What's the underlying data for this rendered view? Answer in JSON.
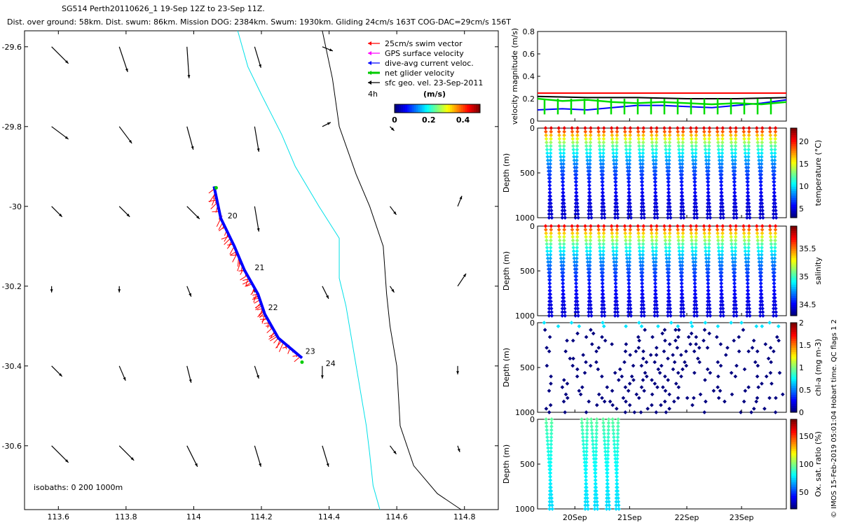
{
  "header": {
    "line1": "SG514 Perth20110626_1 19-Sep 12Z to 23-Sep 11Z.",
    "line2": "Dist. over ground: 58km. Dist. swum: 86km. Mission DOG: 2384km. Swum: 1930km. Gliding 24cm/s 163T COG-DAC=29cm/s 156T"
  },
  "credit": "© IMOS 15-Feb-2019 05:01:04 Hobart time. QC flags 1  2",
  "colors": {
    "swim": "#ff0000",
    "gps": "#ff00ff",
    "current": "#0000ff",
    "net": "#00cc00",
    "sfc": "#000000",
    "coast": "#00e0e8"
  },
  "chart_data": [
    {
      "type": "map",
      "xlim": [
        113.5,
        114.9
      ],
      "ylim": [
        -30.76,
        -29.56
      ],
      "xticks": [
        "113.6",
        "113.8",
        "114",
        "114.2",
        "114.4",
        "114.6",
        "114.8"
      ],
      "yticks": [
        "-29.6",
        "-29.8",
        "-30",
        "-30.2",
        "-30.4",
        "-30.6"
      ],
      "legend": {
        "position": "top-right",
        "items": [
          {
            "label": "25cm/s swim vector",
            "color": "#ff0000"
          },
          {
            "label": "GPS surface velocity",
            "color": "#ff00ff"
          },
          {
            "label": "dive-avg current veloc.",
            "color": "#0000ff"
          },
          {
            "label": "net glider velocity",
            "color": "#00cc00"
          },
          {
            "label": "sfc geo. vel. 23-Sep-2011",
            "color": "#000000"
          }
        ],
        "scale_label": "4h"
      },
      "colorbar": {
        "title": "(m/s)",
        "ticks": [
          "0",
          "0.2",
          "0.4"
        ],
        "range": [
          0,
          0.5
        ]
      },
      "isobaths_label": "isobaths: 0   200  1000m",
      "track": [
        [
          114.06,
          -29.95
        ],
        [
          114.08,
          -30.03
        ],
        [
          114.12,
          -30.1
        ],
        [
          114.15,
          -30.16
        ],
        [
          114.19,
          -30.22
        ],
        [
          114.21,
          -30.27
        ],
        [
          114.25,
          -30.33
        ],
        [
          114.32,
          -30.38
        ]
      ],
      "day_labels": [
        {
          "text": "20",
          "lon": 114.1,
          "lat": -30.03
        },
        {
          "text": "21",
          "lon": 114.18,
          "lat": -30.16
        },
        {
          "text": "22",
          "lon": 114.22,
          "lat": -30.26
        },
        {
          "text": "23",
          "lon": 114.33,
          "lat": -30.37
        },
        {
          "text": "24",
          "lon": 114.39,
          "lat": -30.4
        }
      ],
      "coastline_1000m": [
        [
          114.13,
          -29.56
        ],
        [
          114.16,
          -29.65
        ],
        [
          114.2,
          -29.72
        ],
        [
          114.26,
          -29.82
        ],
        [
          114.3,
          -29.9
        ],
        [
          114.37,
          -30.0
        ],
        [
          114.43,
          -30.08
        ],
        [
          114.43,
          -30.18
        ],
        [
          114.45,
          -30.25
        ],
        [
          114.47,
          -30.35
        ],
        [
          114.49,
          -30.45
        ],
        [
          114.51,
          -30.55
        ],
        [
          114.52,
          -30.62
        ],
        [
          114.53,
          -30.7
        ],
        [
          114.55,
          -30.76
        ]
      ],
      "coastline_0m": [
        [
          114.38,
          -29.56
        ],
        [
          114.41,
          -29.68
        ],
        [
          114.43,
          -29.8
        ],
        [
          114.48,
          -29.92
        ],
        [
          114.52,
          -30.0
        ],
        [
          114.56,
          -30.1
        ],
        [
          114.57,
          -30.22
        ],
        [
          114.58,
          -30.3
        ],
        [
          114.6,
          -30.4
        ],
        [
          114.61,
          -30.55
        ],
        [
          114.65,
          -30.65
        ],
        [
          114.72,
          -30.72
        ],
        [
          114.79,
          -30.76
        ]
      ],
      "surface_vectors": {
        "lons": [
          113.58,
          113.78,
          113.98,
          114.18,
          114.38,
          114.58,
          114.78
        ],
        "lats": [
          -29.6,
          -29.8,
          -30.0,
          -30.2,
          -30.4,
          -30.6
        ],
        "u": [
          [
            0.08,
            0.04,
            0.01,
            0.03,
            0.05,
            0.0,
            0.0
          ],
          [
            0.08,
            0.06,
            0.03,
            0.02,
            0.04,
            0.02,
            0.0
          ],
          [
            0.05,
            0.05,
            0.06,
            0.02,
            0.0,
            0.03,
            0.02
          ],
          [
            0.0,
            0.0,
            0.02,
            0.0,
            0.03,
            0.02,
            0.04
          ],
          [
            0.05,
            0.03,
            0.02,
            0.02,
            0.0,
            0.0,
            0.0
          ],
          [
            0.08,
            0.07,
            0.05,
            0.03,
            0.03,
            0.03,
            0.01
          ]
        ],
        "v": [
          [
            -0.08,
            -0.12,
            -0.15,
            -0.1,
            -0.02,
            0.0,
            0.0
          ],
          [
            -0.06,
            -0.08,
            -0.11,
            -0.12,
            0.02,
            -0.02,
            0.0
          ],
          [
            -0.05,
            -0.05,
            -0.06,
            -0.12,
            0.0,
            -0.04,
            0.05
          ],
          [
            -0.03,
            -0.03,
            -0.05,
            -0.03,
            -0.06,
            -0.03,
            0.06
          ],
          [
            -0.05,
            -0.07,
            -0.08,
            -0.06,
            -0.06,
            0.0,
            -0.04
          ],
          [
            -0.08,
            -0.07,
            -0.1,
            -0.1,
            -0.1,
            -0.04,
            -0.03
          ]
        ]
      }
    },
    {
      "type": "line",
      "ylabel": "velocity magnitude (m/s)",
      "ylim": [
        0,
        0.8
      ],
      "yticks": [
        "0",
        "0.2",
        "0.4",
        "0.6",
        "0.8"
      ],
      "series": [
        {
          "color": "#ff0000",
          "x": [
            0,
            1
          ],
          "values": [
            0.25,
            0.25
          ]
        },
        {
          "color": "#000000",
          "x": [
            0,
            0.2,
            0.4,
            0.6,
            0.8,
            1
          ],
          "values": [
            0.22,
            0.21,
            0.21,
            0.2,
            0.2,
            0.21
          ]
        },
        {
          "color": "#0000ff",
          "x": [
            0,
            0.1,
            0.2,
            0.3,
            0.4,
            0.5,
            0.6,
            0.7,
            0.8,
            0.9,
            1
          ],
          "values": [
            0.1,
            0.11,
            0.1,
            0.12,
            0.14,
            0.14,
            0.13,
            0.12,
            0.14,
            0.16,
            0.19
          ]
        },
        {
          "color": "#00dd00",
          "x": [
            0,
            0.1,
            0.2,
            0.3,
            0.4,
            0.5,
            0.6,
            0.7,
            0.8,
            0.9,
            1
          ],
          "values": [
            0.2,
            0.18,
            0.19,
            0.17,
            0.16,
            0.17,
            0.16,
            0.15,
            0.16,
            0.15,
            0.17
          ]
        }
      ]
    },
    {
      "type": "scatter",
      "name": "temperature",
      "ylabel": "Depth (m)",
      "clabel": "temperature (°C)",
      "ylim": [
        1000,
        0
      ],
      "yticks": [
        "0",
        "500",
        "1000"
      ],
      "cticks": [
        "5",
        "10",
        "15",
        "20"
      ],
      "crange": [
        3,
        23
      ],
      "dives": 18,
      "surface_value": 21,
      "deep_value": 4,
      "max_depth": 1000
    },
    {
      "type": "scatter",
      "name": "salinity",
      "ylabel": "Depth (m)",
      "clabel": "salinity",
      "ylim": [
        1000,
        0
      ],
      "yticks": [
        "0",
        "500",
        "1000"
      ],
      "cticks": [
        "34.5",
        "35",
        "35.5"
      ],
      "crange": [
        34.3,
        35.9
      ],
      "dives": 18,
      "surface_value": 35.7,
      "deep_value": 34.4,
      "max_depth": 1000
    },
    {
      "type": "scatter",
      "name": "chl-a",
      "ylabel": "Depth (m)",
      "clabel": "chl-a (mg m-3)",
      "ylim": [
        1000,
        0
      ],
      "yticks": [
        "0",
        "500",
        "1000"
      ],
      "cticks": [
        "0",
        "0.5",
        "1",
        "1.5",
        "2"
      ],
      "crange": [
        0,
        2
      ],
      "dives": 18,
      "surface_value": 0.5,
      "deep_value": 0,
      "max_depth": 1000
    },
    {
      "type": "scatter",
      "name": "oxygen",
      "ylabel": "Depth (m)",
      "clabel": "Ox. sat. ratio (%)",
      "ylim": [
        1000,
        0
      ],
      "yticks": [
        "0",
        "500",
        "1000"
      ],
      "cticks": [
        "50",
        "100",
        "150"
      ],
      "crange": [
        20,
        180
      ],
      "dives": 5,
      "surface_value": 95,
      "deep_value": 70,
      "max_depth": 1000
    },
    {
      "type": "axis",
      "xticks": [
        "20Sep",
        "21Sep",
        "22Sep",
        "23Sep"
      ]
    }
  ]
}
